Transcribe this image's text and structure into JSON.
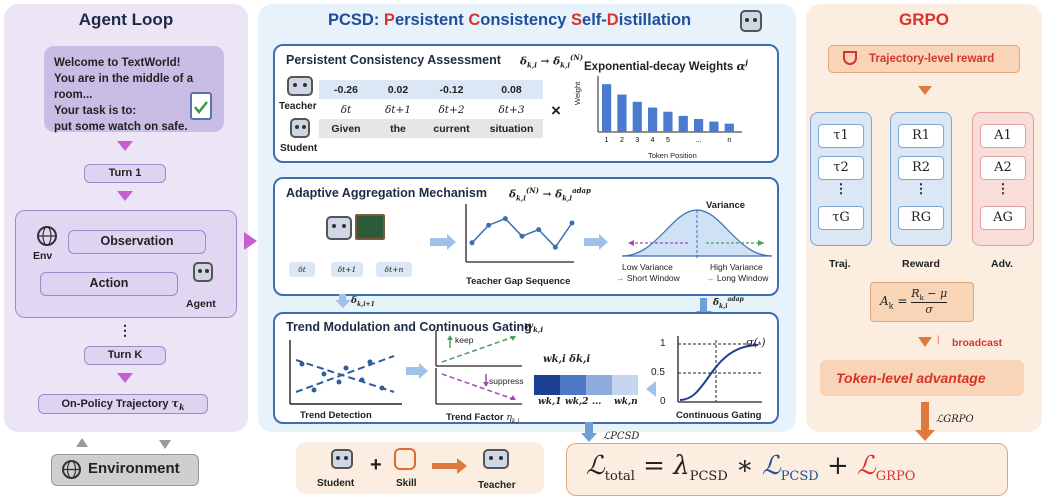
{
  "agent_loop": {
    "title": "Agent Loop",
    "welcome_lines": [
      "Welcome to TextWorld!",
      "You are in the middle of a room...",
      "Your task is to:",
      "put some watch on safe."
    ],
    "turn1": "Turn 1",
    "observation": "Observation",
    "action": "Action",
    "env": "Env",
    "agent": "Agent",
    "dots": "⋮",
    "turnK": "Turn K",
    "trajectory": "On-Policy Trajectory",
    "trajectory_sym": "τ",
    "trajectory_sub": "k",
    "environment": "Environment"
  },
  "pcsd": {
    "title_prefix": "PCSD: ",
    "title_words": [
      {
        "first": "P",
        "rest": "ersistent "
      },
      {
        "first": "C",
        "rest": "onsistency "
      },
      {
        "first": "S",
        "rest": "elf-"
      },
      {
        "first": "D",
        "rest": "istillation"
      }
    ],
    "assessment": {
      "title": "Persistent Consistency Assessment",
      "teacher": "Teacher",
      "student": "Student",
      "values": [
        "-0.26",
        "0.02",
        "-0.12",
        "0.08"
      ],
      "deltas": [
        "δt",
        "δt+1",
        "δt+2",
        "δt+3"
      ],
      "tokens": [
        "Given",
        "the",
        "current",
        "situation"
      ],
      "times": "×",
      "weights_title": "Exponential-decay Weights",
      "weights_ylabel": "Weight",
      "weights_xlabel": "Token Position",
      "weights_ticks": [
        "1",
        "2",
        "3",
        "4",
        "5",
        "...",
        "n"
      ]
    },
    "adaptive": {
      "title": "Adaptive Aggregation Mechanism",
      "deltas": [
        "δt",
        "δt+1",
        "δt+n"
      ],
      "gap_label": "Teacher Gap Sequence",
      "variance": "Variance",
      "low_var": "Low Variance",
      "short_win": "Short Window",
      "high_var": "High Variance",
      "long_win": "Long Window"
    },
    "trend": {
      "title": "Trend Modulation and Continuous Gating",
      "trend_detection": "Trend Detection",
      "keep": "keep",
      "suppress": "suppress",
      "trend_factor": "Trend Factor",
      "wk_delta": "wk,i δk,i",
      "w_labels": [
        "wk,1",
        "wk,2",
        "...",
        "wk,n"
      ],
      "gating": "Continuous Gating",
      "sigma": "σ(·)",
      "tick_1": "1",
      "tick_05": "0.5",
      "tick_0": "0"
    },
    "loss_pcsd": "ℒPCSD",
    "student_label": "Student",
    "skill_label": "Skill",
    "teacher_label": "Teacher"
  },
  "grpo": {
    "title": "GRPO",
    "traj_reward": "Trajectory-level reward",
    "traj": [
      "τ1",
      "τ2",
      "⋮",
      "τG"
    ],
    "reward": [
      "R1",
      "R2",
      "⋮",
      "RG"
    ],
    "adv": [
      "A1",
      "A2",
      "⋮",
      "AG"
    ],
    "col_labels": [
      "Traj.",
      "Reward",
      "Adv."
    ],
    "broadcast": "broadcast",
    "token_adv": "Token-level advantage",
    "loss_grpo": "ℒGRPO"
  },
  "weights_values": [
    0.92,
    0.72,
    0.58,
    0.47,
    0.39,
    0.31,
    0.25,
    0.2,
    0.16
  ],
  "gap_values": [
    0.3,
    0.7,
    0.85,
    0.45,
    0.6,
    0.2,
    0.75
  ],
  "gating_colors": [
    "#1c3f8f",
    "#4d78c4",
    "#8eadde",
    "#c6d6f0"
  ],
  "colors": {
    "red": "#d8342b",
    "blue": "#1f4e9a",
    "orange": "#e07a3c",
    "purple_bg": "#ece5f6",
    "blue_bg": "#e8f2fa",
    "orange_bg": "#fbeee0"
  }
}
